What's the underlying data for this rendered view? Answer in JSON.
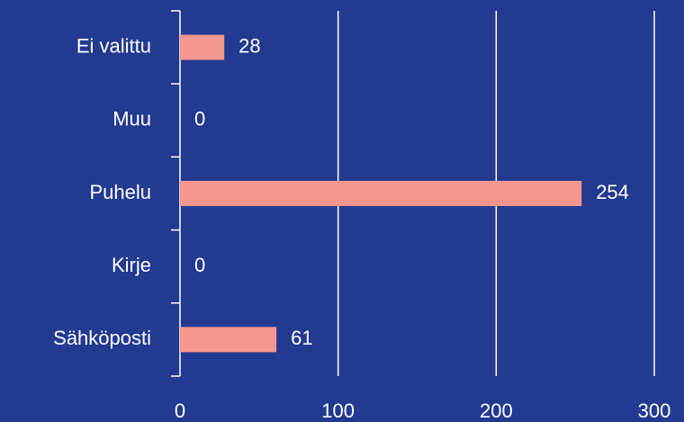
{
  "chart_data": {
    "type": "bar",
    "orientation": "horizontal",
    "categories": [
      "Ei valittu",
      "Muu",
      "Puhelu",
      "Kirje",
      "Sähköposti"
    ],
    "values": [
      28,
      0,
      254,
      0,
      61
    ],
    "color": "#f4978e",
    "xlim": [
      0,
      300
    ],
    "xticks": [
      0,
      100,
      200,
      300
    ],
    "grid": true
  }
}
